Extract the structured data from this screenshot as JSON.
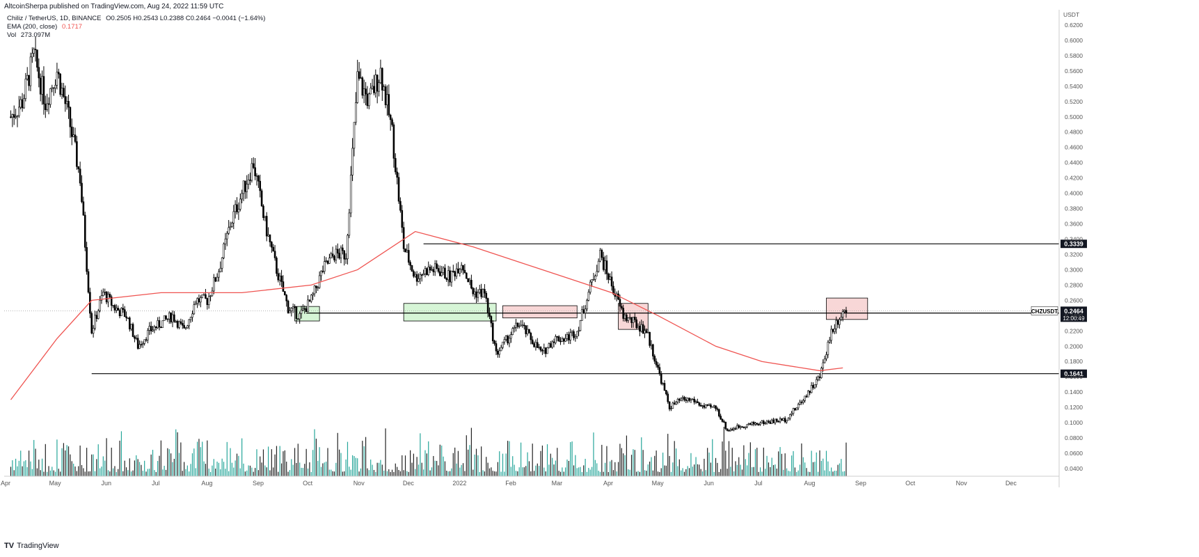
{
  "header": {
    "publisher_text": "AltcoinSherpa published on TradingView.com, Aug 24, 2022 11:59 UTC"
  },
  "legend": {
    "symbol_line": "Chiliz / TetherUS, 1D, BINANCE",
    "ohlc": "O0.2505 H0.2543 L0.2388 C0.2464 −0.0041 (−1.64%)",
    "ema_label": "EMA (200, close)",
    "ema_value": "0.1717",
    "vol_label": "Vol",
    "vol_value": "273.097M"
  },
  "footer": {
    "logo_glyph": "TV",
    "brand": "TradingView"
  },
  "colors": {
    "candle": "#000000",
    "ema": "#ef5350",
    "volume": "#26a69a",
    "volume_down": "#222222",
    "support_box_fill": "#d6f5d6",
    "resistance_box_fill": "#f8d7d7",
    "axis_text": "#555555",
    "price_badge": "#131722"
  },
  "chart_data": {
    "type": "line",
    "title": "",
    "series": [
      {
        "name": "CHZUSDT",
        "values_note": "",
        "x": [
          "2021-04-05",
          "2021-04-12",
          "2021-04-19",
          "2021-04-26",
          "2021-05-03",
          "2021-05-10",
          "2021-05-17",
          "2021-05-24",
          "2021-05-31",
          "2021-06-07",
          "2021-06-14",
          "2021-06-21",
          "2021-06-28",
          "2021-07-05",
          "2021-07-12",
          "2021-07-19",
          "2021-07-26",
          "2021-08-02",
          "2021-08-09",
          "2021-08-16",
          "2021-08-23",
          "2021-08-30",
          "2021-09-06",
          "2021-09-13",
          "2021-09-20",
          "2021-09-27",
          "2021-10-04",
          "2021-10-11",
          "2021-10-18",
          "2021-10-25",
          "2021-11-01",
          "2021-11-08",
          "2021-11-15",
          "2021-11-22",
          "2021-11-29",
          "2021-12-06",
          "2021-12-13",
          "2021-12-20",
          "2021-12-27",
          "2022-01-03",
          "2022-01-10",
          "2022-01-17",
          "2022-01-24",
          "2022-01-31",
          "2022-02-07",
          "2022-02-14",
          "2022-02-21",
          "2022-02-28",
          "2022-03-07",
          "2022-03-14",
          "2022-03-21",
          "2022-03-28",
          "2022-04-04",
          "2022-04-11",
          "2022-04-18",
          "2022-04-25",
          "2022-05-02",
          "2022-05-09",
          "2022-05-16",
          "2022-05-23",
          "2022-05-30",
          "2022-06-06",
          "2022-06-13",
          "2022-06-20",
          "2022-06-27",
          "2022-07-04",
          "2022-07-11",
          "2022-07-18",
          "2022-07-25",
          "2022-08-01",
          "2022-08-08",
          "2022-08-15",
          "2022-08-22"
        ],
        "values": [
          0.5,
          0.52,
          0.58,
          0.52,
          0.56,
          0.5,
          0.42,
          0.22,
          0.27,
          0.25,
          0.24,
          0.2,
          0.22,
          0.23,
          0.24,
          0.22,
          0.26,
          0.26,
          0.3,
          0.36,
          0.4,
          0.44,
          0.36,
          0.3,
          0.25,
          0.24,
          0.26,
          0.3,
          0.32,
          0.32,
          0.55,
          0.52,
          0.56,
          0.48,
          0.33,
          0.29,
          0.3,
          0.3,
          0.29,
          0.31,
          0.27,
          0.27,
          0.19,
          0.21,
          0.23,
          0.21,
          0.19,
          0.21,
          0.21,
          0.22,
          0.27,
          0.32,
          0.28,
          0.24,
          0.23,
          0.22,
          0.17,
          0.12,
          0.13,
          0.13,
          0.12,
          0.12,
          0.09,
          0.095,
          0.098,
          0.1,
          0.102,
          0.104,
          0.12,
          0.14,
          0.16,
          0.22,
          0.246
        ]
      },
      {
        "name": "EMA (200, close)",
        "x": [
          "2021-04-05",
          "2021-05-03",
          "2021-05-24",
          "2021-07-05",
          "2021-08-23",
          "2021-10-04",
          "2021-11-01",
          "2021-12-06",
          "2022-01-10",
          "2022-02-07",
          "2022-03-07",
          "2022-04-04",
          "2022-05-02",
          "2022-06-06",
          "2022-07-04",
          "2022-08-08",
          "2022-08-22"
        ],
        "values": [
          0.13,
          0.21,
          0.26,
          0.27,
          0.27,
          0.28,
          0.3,
          0.35,
          0.33,
          0.31,
          0.29,
          0.27,
          0.24,
          0.2,
          0.18,
          0.168,
          0.1717
        ]
      }
    ],
    "volume": {
      "name": "Vol",
      "last_value": "273.097M"
    },
    "horizontal_lines": [
      0.3339,
      0.2434,
      0.1641
    ],
    "zones": [
      {
        "kind": "support",
        "from": "2021-09-24",
        "to": "2021-10-09",
        "low": 0.233,
        "high": 0.252
      },
      {
        "kind": "support",
        "from": "2021-11-29",
        "to": "2022-01-24",
        "low": 0.233,
        "high": 0.256
      },
      {
        "kind": "resistance",
        "from": "2022-01-28",
        "to": "2022-03-14",
        "low": 0.237,
        "high": 0.253
      },
      {
        "kind": "resistance",
        "from": "2022-04-08",
        "to": "2022-04-26",
        "low": 0.222,
        "high": 0.256
      },
      {
        "kind": "resistance",
        "from": "2022-08-12",
        "to": "2022-09-06",
        "low": 0.235,
        "high": 0.263
      }
    ],
    "last_price": {
      "symbol": "CHZUSDT",
      "value": "0.2464",
      "countdown": "12:00:49"
    },
    "xlabel": "",
    "ylabel": "USDT",
    "ylim": [
      0.03,
      0.64
    ],
    "y_ticks": [
      "0.6200",
      "0.6000",
      "0.5800",
      "0.5600",
      "0.5400",
      "0.5200",
      "0.5000",
      "0.4800",
      "0.4600",
      "0.4400",
      "0.4200",
      "0.4000",
      "0.3800",
      "0.3600",
      "0.3400",
      "0.3200",
      "0.3000",
      "0.2800",
      "0.2600",
      "0.2400",
      "0.2200",
      "0.2000",
      "0.1800",
      "0.1600",
      "0.1400",
      "0.1200",
      "0.1000",
      "0.0800",
      "0.0600",
      "0.0400"
    ],
    "x_ticks": [
      "Apr",
      "May",
      "Jun",
      "Jul",
      "Aug",
      "Sep",
      "Oct",
      "Nov",
      "Dec",
      "2022",
      "Feb",
      "Mar",
      "Apr",
      "May",
      "Jun",
      "Jul",
      "Aug",
      "Sep",
      "Oct",
      "Nov",
      "Dec"
    ],
    "x_tick_dates": [
      "2021-04-01",
      "2021-05-01",
      "2021-06-01",
      "2021-07-01",
      "2021-08-01",
      "2021-09-01",
      "2021-10-01",
      "2021-11-01",
      "2021-12-01",
      "2022-01-01",
      "2022-02-01",
      "2022-03-01",
      "2022-04-01",
      "2022-05-01",
      "2022-06-01",
      "2022-07-01",
      "2022-08-01",
      "2022-09-01",
      "2022-10-01",
      "2022-11-01",
      "2022-12-01"
    ],
    "level_labels": [
      "0.3339",
      "0.2434",
      "0.1641"
    ],
    "grid": false,
    "legend_position": "top-left"
  }
}
